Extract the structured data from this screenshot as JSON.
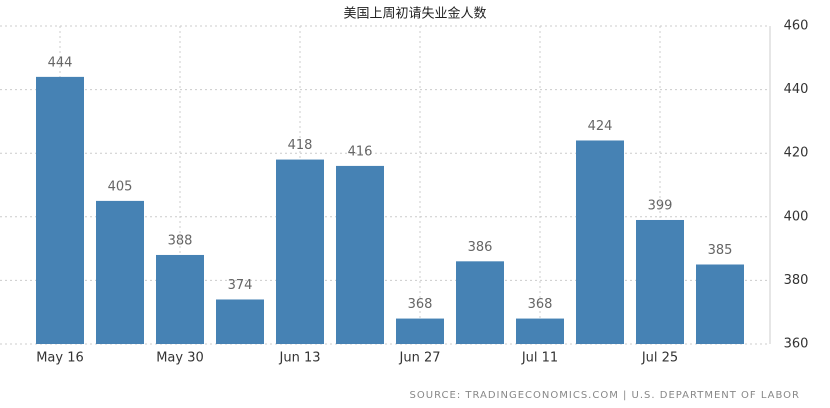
{
  "chart_data": {
    "type": "bar",
    "title": "美国上周初请失业金人数",
    "categories": [
      "May 16",
      null,
      "May 30",
      null,
      "Jun 13",
      null,
      "Jun 27",
      null,
      "Jul 11",
      null,
      "Jul 25",
      null
    ],
    "values": [
      444,
      405,
      388,
      374,
      418,
      416,
      368,
      386,
      368,
      424,
      399,
      385
    ],
    "color": "#4682b4",
    "ylim": [
      360,
      460
    ],
    "yticks": [
      360,
      380,
      400,
      420,
      440,
      460
    ],
    "grid": true,
    "source": "SOURCE: TRADINGECONOMICS.COM | U.S. DEPARTMENT OF LABOR"
  }
}
